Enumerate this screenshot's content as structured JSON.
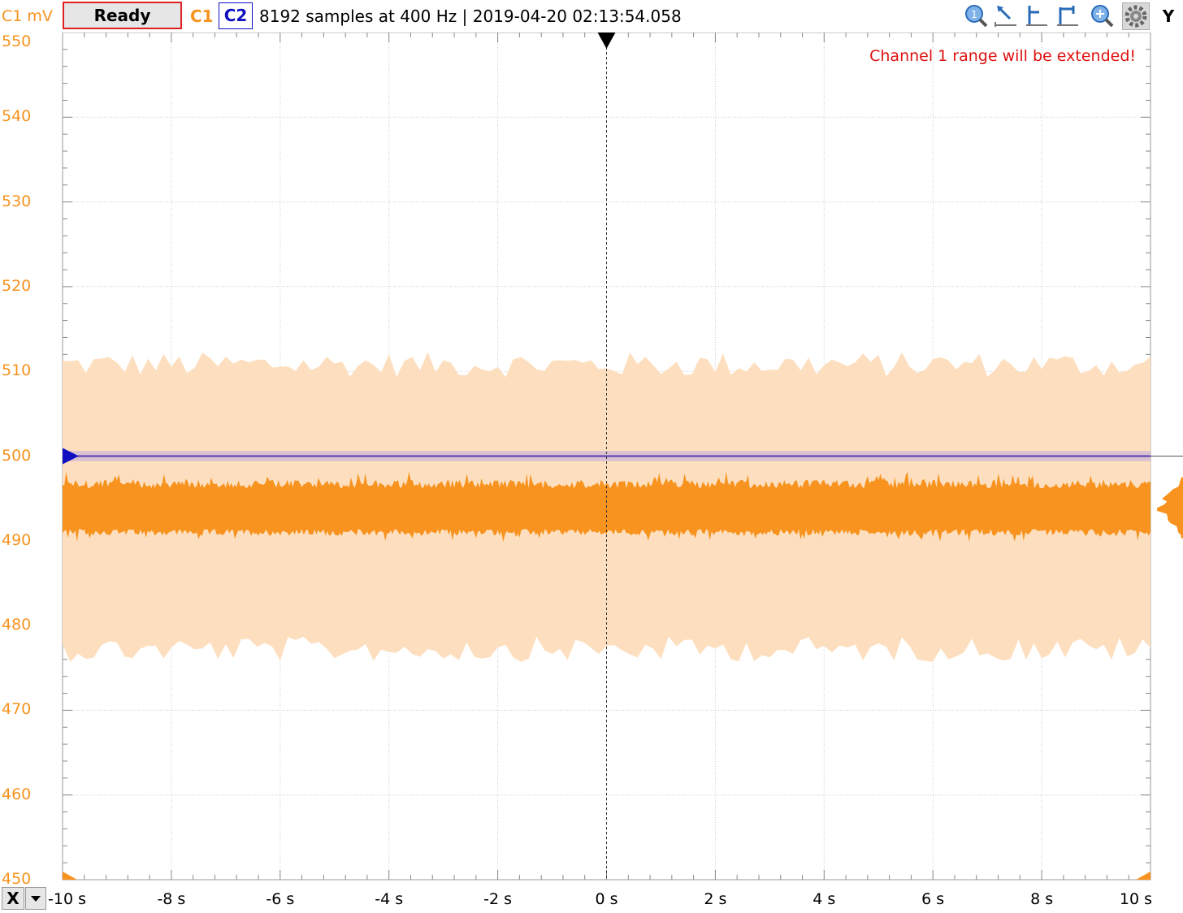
{
  "header": {
    "y_unit": "C1 mV",
    "run_state": "Ready",
    "channel1": "C1",
    "channel2": "C2",
    "status": "8192 samples at 400 Hz | 2019-04-20 02:13:54.058",
    "y_button": "Y",
    "x_button": "X"
  },
  "toolbar": {
    "icons": [
      "zoom-reset-icon",
      "cursor-select-icon",
      "horizontal-marker-icon",
      "vertical-marker-icon",
      "zoom-fit-icon",
      "settings-gear-icon"
    ]
  },
  "warning": "Channel 1 range will be extended!",
  "colors": {
    "channel1": "#f7931e",
    "channel1_envelope": "#fddfbf",
    "channel2": "#1010c0",
    "grid": "#c8c8c8",
    "warning": "#e01010"
  },
  "chart_data": {
    "type": "line",
    "x_tick_labels": [
      "-10 s",
      "-8 s",
      "-6 s",
      "-4 s",
      "-2 s",
      "0 s",
      "2 s",
      "4 s",
      "6 s",
      "8 s",
      "10 s"
    ],
    "y_tick_labels": [
      "550",
      "540",
      "530",
      "520",
      "510",
      "500",
      "490",
      "480",
      "470",
      "460",
      "450"
    ],
    "xlim": [
      -10,
      10
    ],
    "ylim": [
      450,
      550
    ],
    "trigger_time": 0,
    "grid": true,
    "series": [
      {
        "name": "C1",
        "samples": 8192,
        "sample_rate_hz": 400,
        "signal_min": 490.6,
        "signal_max": 497.2,
        "envelope_min": 477.5,
        "envelope_max": 510.5
      },
      {
        "name": "C2",
        "level": 500,
        "band_min": 499.4,
        "band_max": 500.6
      }
    ]
  }
}
